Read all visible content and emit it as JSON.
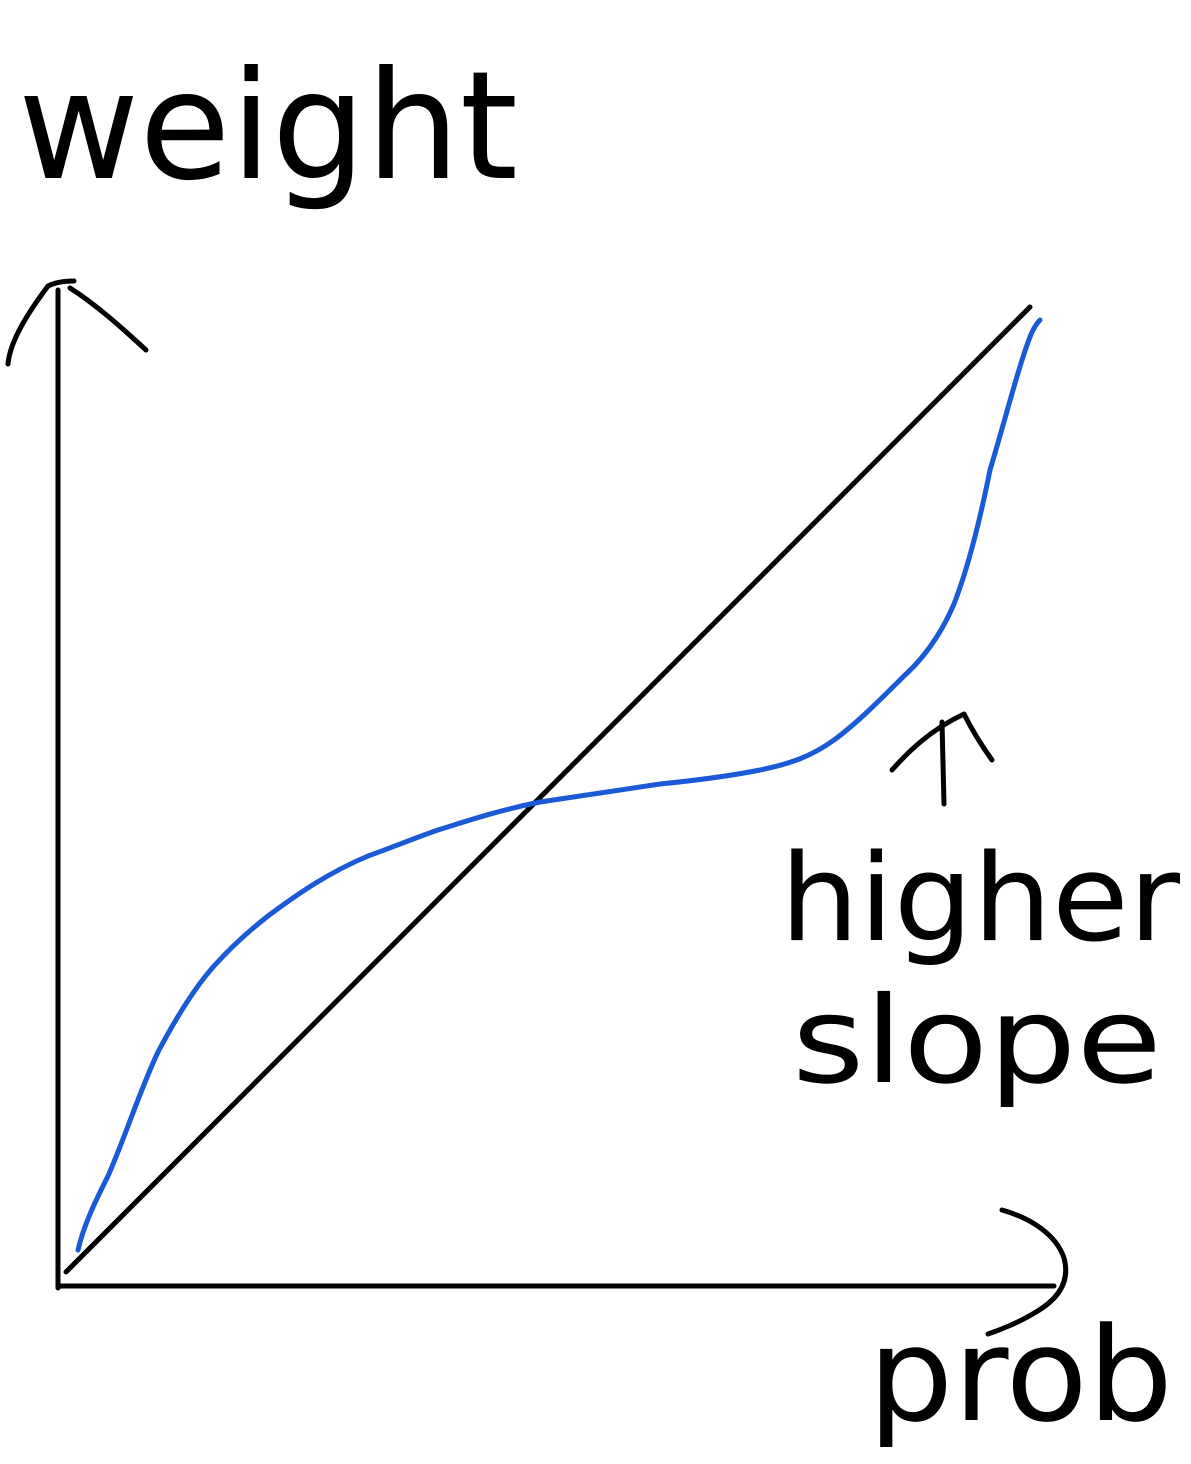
{
  "labels": {
    "y_axis": "weight",
    "x_axis": "prob",
    "annotation_line1": "higher",
    "annotation_line2": "slope"
  },
  "colors": {
    "ink": "#000000",
    "curve": "#1a5ad6",
    "background": "#ffffff"
  }
}
